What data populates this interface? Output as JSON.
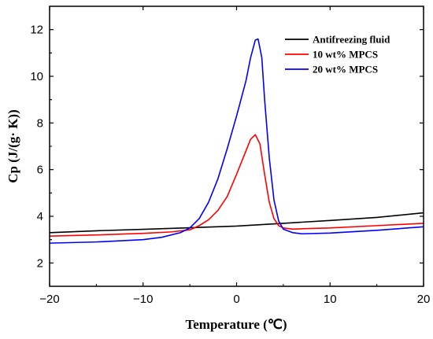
{
  "chart_data": {
    "type": "line",
    "title": "",
    "xlabel": "Temperature (℃)",
    "ylabel": "Cp (J/(g· K))",
    "xlim": [
      -20,
      20
    ],
    "ylim": [
      1,
      13
    ],
    "xticks": [
      -20,
      -10,
      0,
      10,
      20
    ],
    "xtick_labels": [
      "−20",
      "−10",
      "0",
      "10",
      "20"
    ],
    "yticks": [
      2,
      4,
      6,
      8,
      10,
      12
    ],
    "ytick_labels": [
      "2",
      "4",
      "6",
      "8",
      "10",
      "12"
    ],
    "grid": false,
    "legend_position": "top-right",
    "series": [
      {
        "name": "Antifreezing fluid",
        "color": "#000000",
        "x": [
          -20,
          -15,
          -10,
          -5,
          0,
          5,
          10,
          15,
          20
        ],
        "y": [
          3.3,
          3.38,
          3.44,
          3.51,
          3.58,
          3.7,
          3.82,
          3.95,
          4.15
        ]
      },
      {
        "name": "10 wt% MPCS",
        "color": "#ff0000",
        "x": [
          -20,
          -15,
          -10,
          -7,
          -5,
          -4,
          -3,
          -2,
          -1,
          0,
          1,
          1.5,
          2,
          2.5,
          3,
          3.5,
          4,
          4.5,
          5,
          6,
          8,
          10,
          15,
          20
        ],
        "y": [
          3.15,
          3.2,
          3.27,
          3.33,
          3.42,
          3.6,
          3.85,
          4.25,
          4.85,
          5.8,
          6.8,
          7.3,
          7.5,
          7.1,
          5.8,
          4.6,
          3.9,
          3.6,
          3.5,
          3.45,
          3.48,
          3.5,
          3.6,
          3.7
        ]
      },
      {
        "name": "20 wt% MPCS",
        "color": "#0000ff",
        "x": [
          -20,
          -15,
          -10,
          -8,
          -6,
          -5,
          -4,
          -3,
          -2,
          -1,
          0,
          1,
          1.5,
          2,
          2.3,
          2.7,
          3,
          3.5,
          4,
          4.5,
          5,
          6,
          7,
          10,
          15,
          20
        ],
        "y": [
          2.85,
          2.9,
          3.0,
          3.1,
          3.3,
          3.5,
          3.9,
          4.6,
          5.6,
          6.9,
          8.3,
          9.8,
          10.8,
          11.55,
          11.6,
          10.8,
          9.0,
          6.5,
          4.7,
          3.8,
          3.45,
          3.3,
          3.25,
          3.28,
          3.4,
          3.55
        ]
      }
    ]
  }
}
